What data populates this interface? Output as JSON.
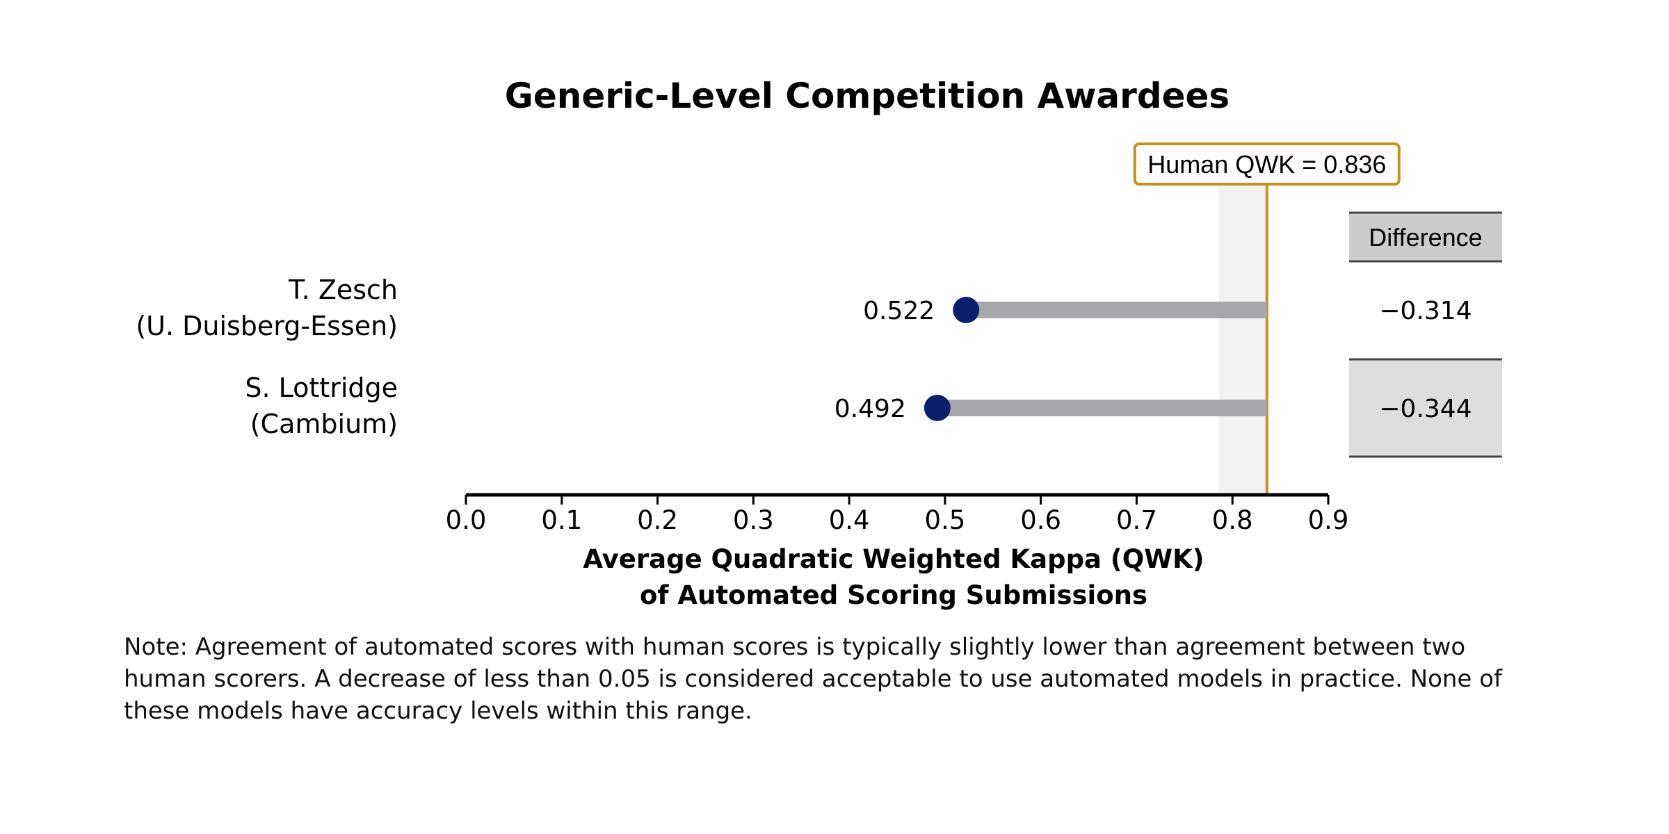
{
  "chart_data": {
    "type": "dumbbell",
    "title": "Generic-Level Competition Awardees",
    "xlabel": [
      "Average Quadratic Weighted Kappa (QWK)",
      "of Automated Scoring Submissions"
    ],
    "xlim": [
      0.0,
      0.9
    ],
    "xticks": [
      "0.0",
      "0.1",
      "0.2",
      "0.3",
      "0.4",
      "0.5",
      "0.6",
      "0.7",
      "0.8",
      "0.9"
    ],
    "grid": false,
    "reference": {
      "label": "Human QWK = 0.836",
      "value": 0.836,
      "band": [
        0.786,
        0.836
      ],
      "color": "#c8901a",
      "band_color": "#f2f2f2"
    },
    "categories": [
      {
        "name": "T. Zesch",
        "affiliation": "(U. Duisberg-Essen)"
      },
      {
        "name": "S. Lottridge",
        "affiliation": "(Cambium)"
      }
    ],
    "values": [
      0.522,
      0.492
    ],
    "value_labels": [
      "0.522",
      "0.492"
    ],
    "difference_header": "Difference",
    "differences": [
      "−0.314",
      "−0.344"
    ],
    "colors": {
      "point": "#0c1f6e",
      "bar": "#a6a7ab",
      "header_fill": "#cccccc",
      "alt_row_fill": "#dddddd",
      "rule": "#444444"
    }
  },
  "note": "Note: Agreement of automated scores with human scores is typically slightly lower than agreement between two human scorers. A decrease of less than 0.05 is considered acceptable to use automated models in practice.  None of these models have accuracy levels within this range."
}
